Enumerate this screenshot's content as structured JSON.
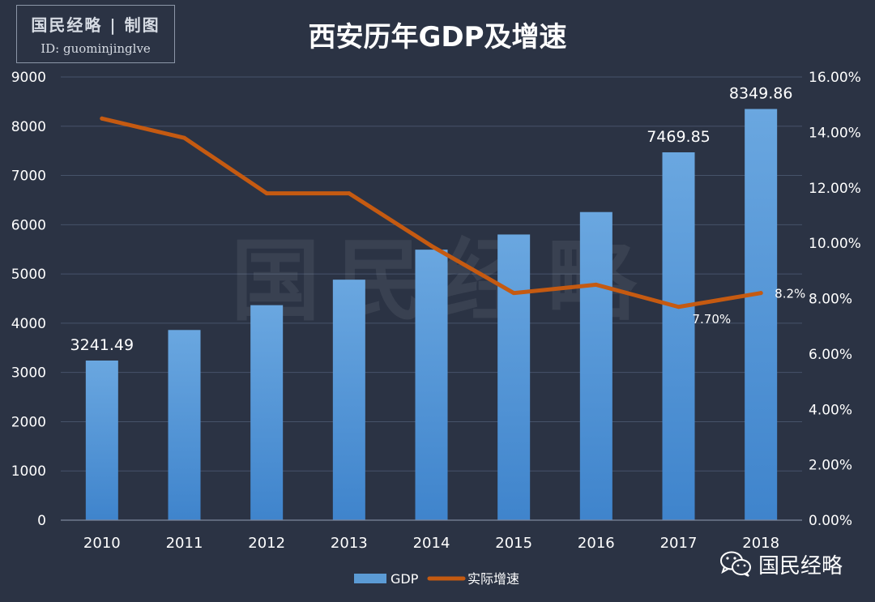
{
  "header": {
    "stamp_line1": "国民经略 | 制图",
    "stamp_line2": "ID: guominjinglve",
    "title": "西安历年GDP及增速"
  },
  "footer": {
    "brand": "国民经略",
    "background_watermark": "国民经略"
  },
  "colors": {
    "background": "#2b3344",
    "bar": "#5b9bd5",
    "line": "#c55a11",
    "grid": "#47536a",
    "text": "#ffffff"
  },
  "chart_data": {
    "type": "bar+line",
    "title": "西安历年GDP及增速",
    "categories": [
      "2010",
      "2011",
      "2012",
      "2013",
      "2014",
      "2015",
      "2016",
      "2017",
      "2018"
    ],
    "series": [
      {
        "name": "GDP",
        "type": "bar",
        "axis": "left",
        "values": [
          3241.49,
          3862,
          4366,
          4884,
          5493,
          5801,
          6257,
          7469.85,
          8349.86
        ],
        "data_labels": [
          "3241.49",
          null,
          null,
          null,
          null,
          null,
          null,
          "7469.85",
          "8349.86"
        ]
      },
      {
        "name": "实际增速",
        "type": "line",
        "axis": "right",
        "values": [
          14.5,
          13.8,
          11.8,
          11.8,
          9.9,
          8.2,
          8.5,
          7.7,
          8.2
        ],
        "data_labels": [
          null,
          null,
          null,
          null,
          null,
          null,
          null,
          "7.70%",
          "8.2%"
        ]
      }
    ],
    "y_left": {
      "min": 0,
      "max": 9000,
      "ticks": [
        "0",
        "1000",
        "2000",
        "3000",
        "4000",
        "5000",
        "6000",
        "7000",
        "8000",
        "9000"
      ]
    },
    "y_right": {
      "min": 0,
      "max": 16,
      "ticks": [
        "0.00%",
        "2.00%",
        "4.00%",
        "6.00%",
        "8.00%",
        "10.00%",
        "12.00%",
        "14.00%",
        "16.00%"
      ]
    },
    "grid": true,
    "legend": {
      "position": "bottom-center",
      "entries": [
        "GDP",
        "实际增速"
      ]
    }
  }
}
